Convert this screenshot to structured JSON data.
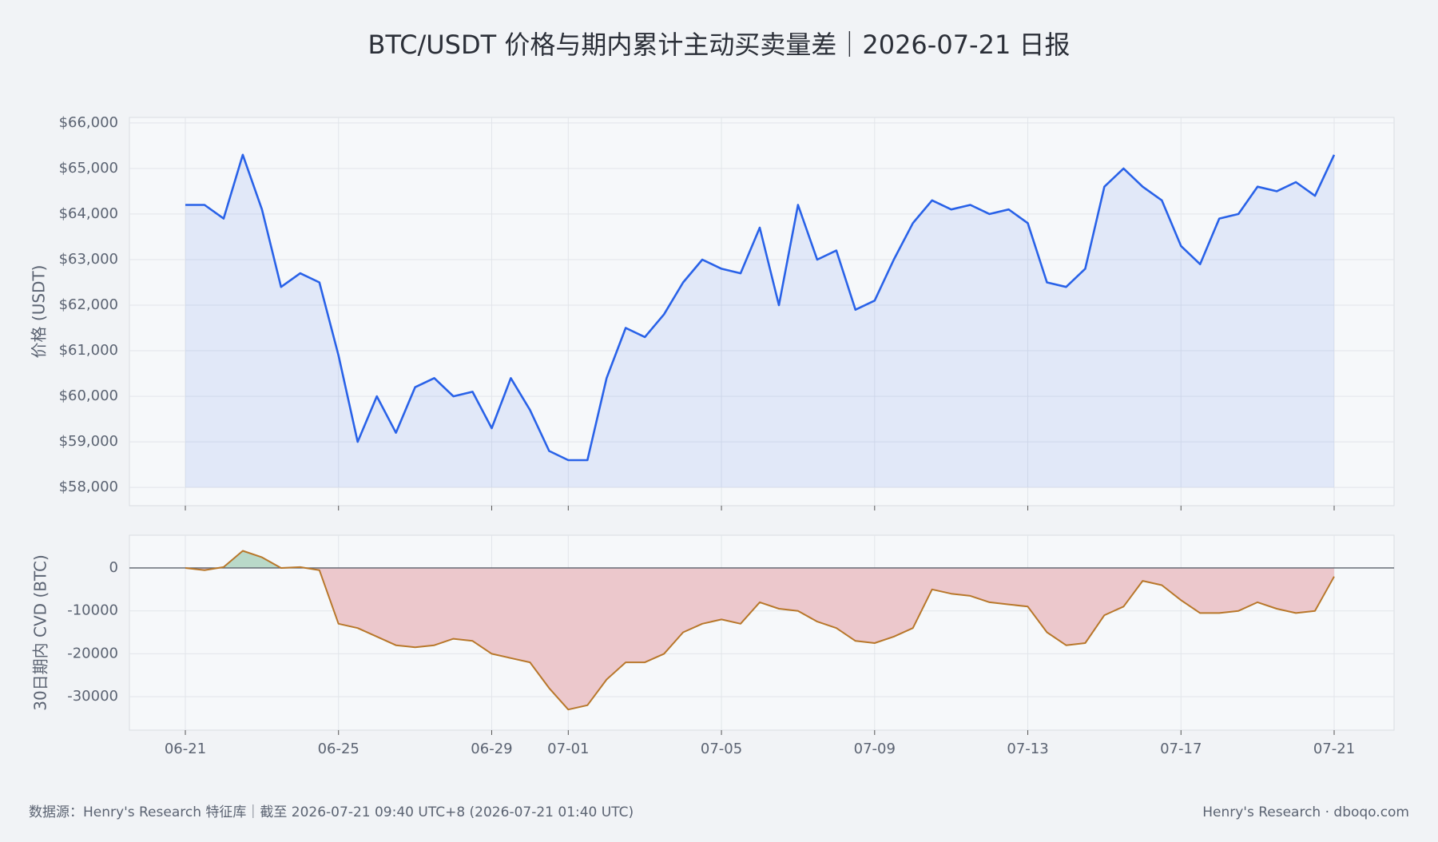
{
  "title": "BTC/USDT 价格与期内累计主动买卖量差｜2026-07-21 日报",
  "footer_left": "数据源：Henry's Research 特征库｜截至 2026-07-21 09:40 UTC+8 (2026-07-21 01:40 UTC)",
  "footer_right": "Henry's Research · dboqo.com",
  "chart_data": [
    {
      "type": "line",
      "y_label": "价格 (USDT)",
      "grid": true,
      "fill": true,
      "xlim": [
        "06-21",
        "07-21"
      ],
      "xticks": [
        "06-21",
        "06-25",
        "06-29",
        "07-01",
        "07-05",
        "07-09",
        "07-13",
        "07-17",
        "07-21"
      ],
      "ylim": [
        57600,
        66120
      ],
      "yticks": [
        {
          "value": 58000,
          "label": "$58,000"
        },
        {
          "value": 59000,
          "label": "$59,000"
        },
        {
          "value": 60000,
          "label": "$60,000"
        },
        {
          "value": 61000,
          "label": "$61,000"
        },
        {
          "value": 62000,
          "label": "$62,000"
        },
        {
          "value": 63000,
          "label": "$63,000"
        },
        {
          "value": 64000,
          "label": "$64,000"
        },
        {
          "value": 65000,
          "label": "$65,000"
        },
        {
          "value": 66000,
          "label": "$66,000"
        }
      ],
      "series": [
        {
          "color": "#2962e8",
          "values": [
            64200,
            64200,
            63900,
            65300,
            64100,
            62400,
            62700,
            62500,
            60900,
            59000,
            60000,
            59200,
            60200,
            60400,
            60000,
            60100,
            59300,
            60400,
            59700,
            58800,
            58600,
            58600,
            60400,
            61500,
            61300,
            61800,
            62500,
            63000,
            62800,
            62700,
            63700,
            62000,
            64200,
            63000,
            63200,
            61900,
            62100,
            63000,
            63800,
            64300,
            64100,
            64200,
            64000,
            64100,
            63800,
            62500,
            62400,
            62800,
            64600,
            65000,
            64600,
            64300,
            63300,
            62900,
            63900,
            64000,
            64600,
            64500,
            64700,
            64400,
            65300
          ]
        }
      ]
    },
    {
      "type": "area",
      "y_label": "30日期内 CVD (BTC)",
      "grid": true,
      "xlim": [
        "06-21",
        "07-21"
      ],
      "xticks": [
        "06-21",
        "06-25",
        "06-29",
        "07-01",
        "07-05",
        "07-09",
        "07-13",
        "07-17",
        "07-21"
      ],
      "ylim": [
        -37800,
        7630
      ],
      "yticks": [
        -30000,
        -20000,
        -10000,
        0
      ],
      "positive_color": "#b9d9c9",
      "negative_color": "#ecc8cc",
      "series": [
        {
          "color": "#b8772a",
          "values": [
            0,
            -500,
            200,
            4000,
            2500,
            0,
            200,
            -500,
            -13000,
            -14000,
            -16000,
            -18000,
            -18500,
            -18000,
            -16500,
            -17000,
            -20000,
            -21000,
            -22000,
            -28000,
            -33000,
            -32000,
            -26000,
            -22000,
            -22000,
            -20000,
            -15000,
            -13000,
            -12000,
            -13000,
            -8000,
            -9500,
            -10000,
            -12500,
            -14000,
            -17000,
            -17500,
            -16000,
            -14000,
            -5000,
            -6000,
            -6500,
            -8000,
            -8500,
            -9000,
            -15000,
            -18000,
            -17500,
            -11000,
            -9000,
            -3000,
            -4000,
            -7500,
            -10500,
            -10500,
            -10000,
            -8000,
            -9500,
            -10500,
            -10000,
            -2000
          ]
        }
      ]
    }
  ]
}
